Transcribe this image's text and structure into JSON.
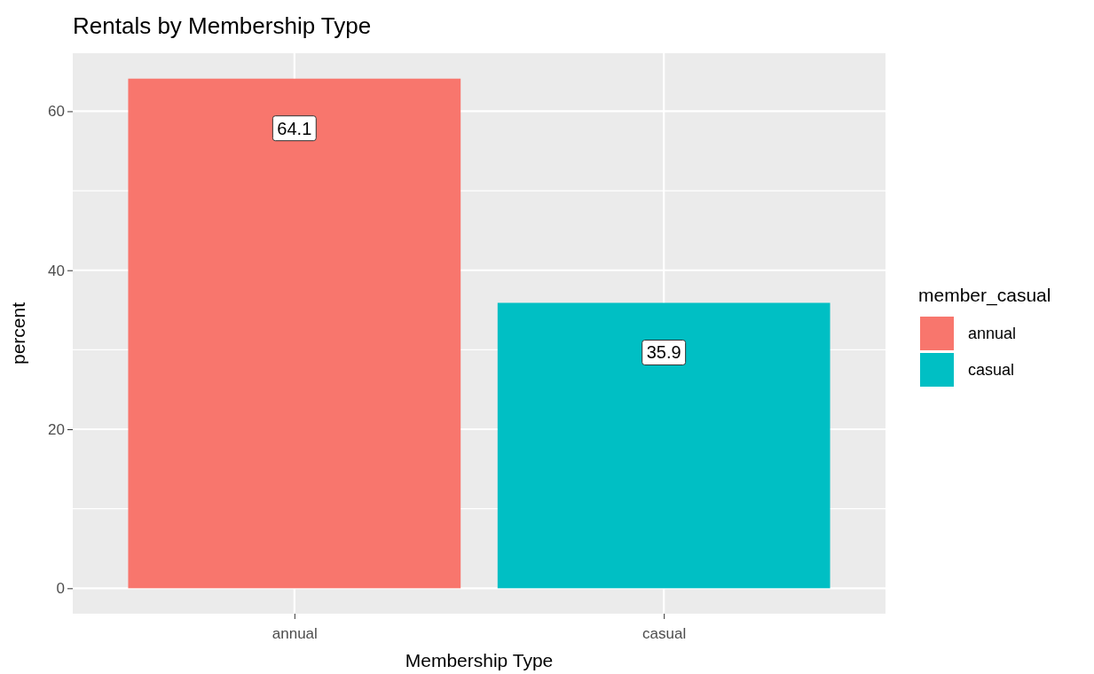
{
  "chart_data": {
    "type": "bar",
    "title": "Rentals by Membership Type",
    "xlabel": "Membership Type",
    "ylabel": "percent",
    "legend_title": "member_casual",
    "categories": [
      "annual",
      "casual"
    ],
    "series": [
      {
        "name": "annual",
        "color": "#f8766d",
        "values": [
          64.1,
          null
        ]
      },
      {
        "name": "casual",
        "color": "#00bfc4",
        "values": [
          null,
          35.9
        ]
      }
    ],
    "ylim": [
      -3.2,
      67.3
    ],
    "yticks": [
      0,
      20,
      40,
      60
    ],
    "grid": true,
    "legend": "right",
    "data_labels": true
  }
}
